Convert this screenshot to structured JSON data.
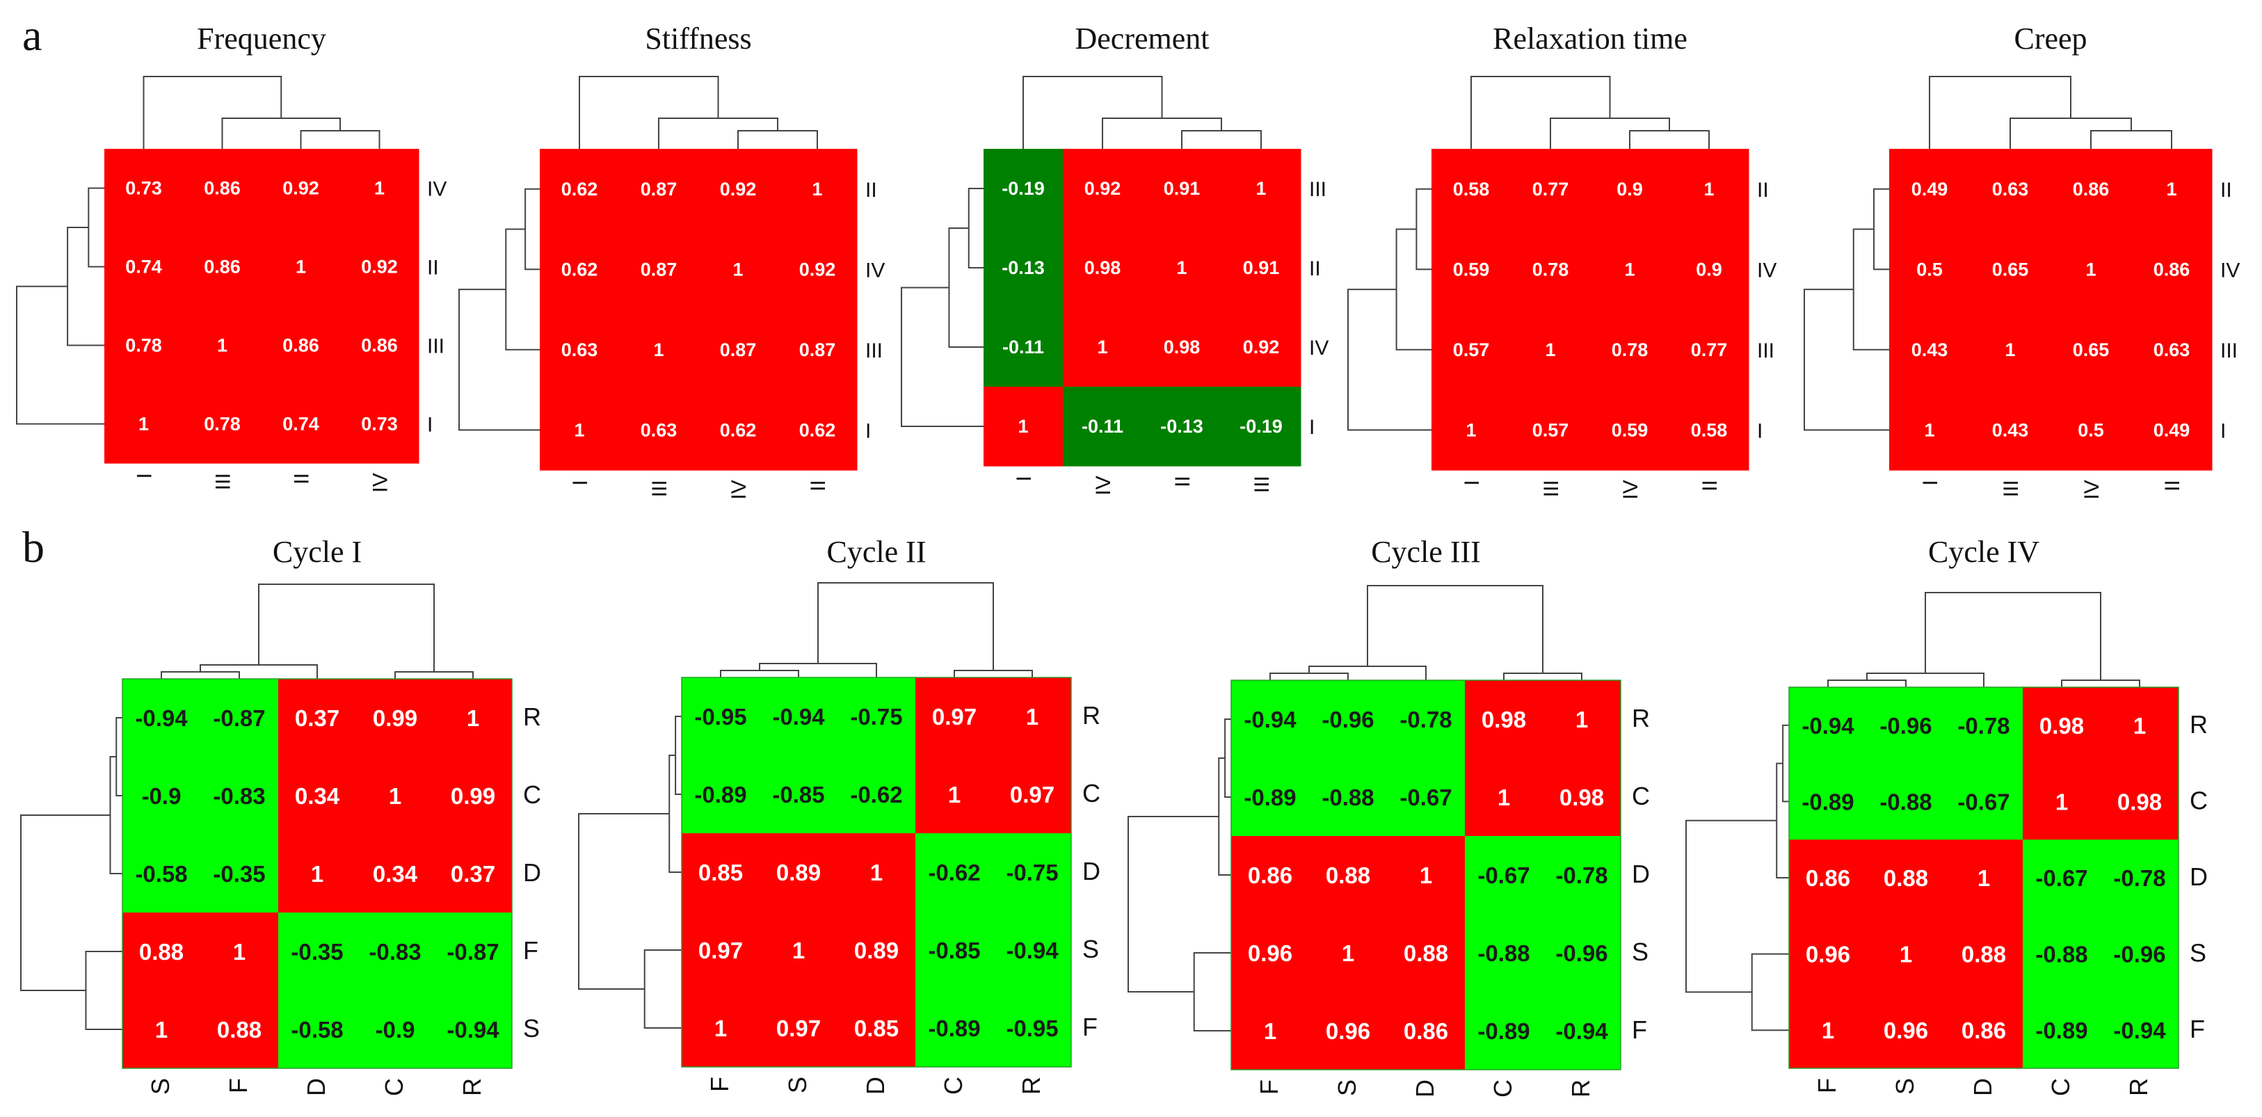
{
  "panel_labels": [
    "a",
    "b"
  ],
  "colors": {
    "high": "#ff0000",
    "low_dark": "#008000",
    "low_bright": "#00ff00",
    "text_positive": "#ffffff",
    "text_negative_dark": "#ffffff",
    "text_negative_bright": "#1a1a1a"
  },
  "chart_data": [
    {
      "type": "heatmap",
      "panel": "a",
      "title": "Frequency",
      "row_labels": [
        "IV",
        "II",
        "III",
        "I"
      ],
      "col_labels": [
        "I",
        "III",
        "II",
        "IV"
      ],
      "values": [
        [
          0.73,
          0.86,
          0.92,
          1
        ],
        [
          0.74,
          0.86,
          1,
          0.92
        ],
        [
          0.78,
          1,
          0.86,
          0.86
        ],
        [
          1,
          0.78,
          0.74,
          0.73
        ]
      ],
      "value_labels": [
        [
          "0.73",
          "0.86",
          "0.92",
          "1"
        ],
        [
          "0.74",
          "0.86",
          "1",
          "0.92"
        ],
        [
          "0.78",
          "1",
          "0.86",
          "0.86"
        ],
        [
          "1",
          "0.78",
          "0.74",
          "0.73"
        ]
      ],
      "row_dendrogram": true,
      "col_dendrogram": true
    },
    {
      "type": "heatmap",
      "panel": "a",
      "title": "Stiffness",
      "row_labels": [
        "II",
        "IV",
        "III",
        "I"
      ],
      "col_labels": [
        "I",
        "III",
        "IV",
        "II"
      ],
      "values": [
        [
          0.62,
          0.87,
          0.92,
          1
        ],
        [
          0.62,
          0.87,
          1,
          0.92
        ],
        [
          0.63,
          1,
          0.87,
          0.87
        ],
        [
          1,
          0.63,
          0.62,
          0.62
        ]
      ],
      "value_labels": [
        [
          "0.62",
          "0.87",
          "0.92",
          "1"
        ],
        [
          "0.62",
          "0.87",
          "1",
          "0.92"
        ],
        [
          "0.63",
          "1",
          "0.87",
          "0.87"
        ],
        [
          "1",
          "0.63",
          "0.62",
          "0.62"
        ]
      ],
      "row_dendrogram": true,
      "col_dendrogram": true
    },
    {
      "type": "heatmap",
      "panel": "a",
      "title": "Decrement",
      "row_labels": [
        "III",
        "II",
        "IV",
        "I"
      ],
      "col_labels": [
        "I",
        "IV",
        "II",
        "III"
      ],
      "values": [
        [
          -0.19,
          0.92,
          0.91,
          1
        ],
        [
          -0.13,
          0.98,
          1,
          0.91
        ],
        [
          -0.11,
          1,
          0.98,
          0.92
        ],
        [
          1,
          -0.11,
          -0.13,
          -0.19
        ]
      ],
      "value_labels": [
        [
          "-0.19",
          "0.92",
          "0.91",
          "1"
        ],
        [
          "-0.13",
          "0.98",
          "1",
          "0.91"
        ],
        [
          "-0.11",
          "1",
          "0.98",
          "0.92"
        ],
        [
          "1",
          "-0.11",
          "-0.13",
          "-0.19"
        ]
      ],
      "row_dendrogram": true,
      "col_dendrogram": true
    },
    {
      "type": "heatmap",
      "panel": "a",
      "title": "Relaxation time",
      "row_labels": [
        "II",
        "IV",
        "III",
        "I"
      ],
      "col_labels": [
        "I",
        "III",
        "IV",
        "II"
      ],
      "values": [
        [
          0.58,
          0.77,
          0.9,
          1
        ],
        [
          0.59,
          0.78,
          1,
          0.9
        ],
        [
          0.57,
          1,
          0.78,
          0.77
        ],
        [
          1,
          0.57,
          0.59,
          0.58
        ]
      ],
      "value_labels": [
        [
          "0.58",
          "0.77",
          "0.9",
          "1"
        ],
        [
          "0.59",
          "0.78",
          "1",
          "0.9"
        ],
        [
          "0.57",
          "1",
          "0.78",
          "0.77"
        ],
        [
          "1",
          "0.57",
          "0.59",
          "0.58"
        ]
      ],
      "row_dendrogram": true,
      "col_dendrogram": true
    },
    {
      "type": "heatmap",
      "panel": "a",
      "title": "Creep",
      "row_labels": [
        "II",
        "IV",
        "III",
        "I"
      ],
      "col_labels": [
        "I",
        "III",
        "IV",
        "II"
      ],
      "values": [
        [
          0.49,
          0.63,
          0.86,
          1
        ],
        [
          0.5,
          0.65,
          1,
          0.86
        ],
        [
          0.43,
          1,
          0.65,
          0.63
        ],
        [
          1,
          0.43,
          0.5,
          0.49
        ]
      ],
      "value_labels": [
        [
          "0.49",
          "0.63",
          "0.86",
          "1"
        ],
        [
          "0.5",
          "0.65",
          "1",
          "0.86"
        ],
        [
          "0.43",
          "1",
          "0.65",
          "0.63"
        ],
        [
          "1",
          "0.43",
          "0.5",
          "0.49"
        ]
      ],
      "row_dendrogram": true,
      "col_dendrogram": true
    },
    {
      "type": "heatmap",
      "panel": "b",
      "title": "Cycle I",
      "row_labels": [
        "R",
        "C",
        "D",
        "F",
        "S"
      ],
      "col_labels": [
        "S",
        "F",
        "D",
        "C",
        "R"
      ],
      "values": [
        [
          -0.94,
          -0.87,
          0.37,
          0.99,
          1
        ],
        [
          -0.9,
          -0.83,
          0.34,
          1,
          0.99
        ],
        [
          -0.58,
          -0.35,
          1,
          0.34,
          0.37
        ],
        [
          0.88,
          1,
          -0.35,
          -0.83,
          -0.87
        ],
        [
          1,
          0.88,
          -0.58,
          -0.9,
          -0.94
        ]
      ],
      "value_labels": [
        [
          "-0.94",
          "-0.87",
          "0.37",
          "0.99",
          "1"
        ],
        [
          "-0.9",
          "-0.83",
          "0.34",
          "1",
          "0.99"
        ],
        [
          "-0.58",
          "-0.35",
          "1",
          "0.34",
          "0.37"
        ],
        [
          "0.88",
          "1",
          "-0.35",
          "-0.83",
          "-0.87"
        ],
        [
          "1",
          "0.88",
          "-0.58",
          "-0.9",
          "-0.94"
        ]
      ],
      "row_dendrogram": true,
      "col_dendrogram": true
    },
    {
      "type": "heatmap",
      "panel": "b",
      "title": "Cycle II",
      "row_labels": [
        "R",
        "C",
        "D",
        "S",
        "F"
      ],
      "col_labels": [
        "F",
        "S",
        "D",
        "C",
        "R"
      ],
      "values": [
        [
          -0.95,
          -0.94,
          -0.75,
          0.97,
          1
        ],
        [
          -0.89,
          -0.85,
          -0.62,
          1,
          0.97
        ],
        [
          0.85,
          0.89,
          1,
          -0.62,
          -0.75
        ],
        [
          0.97,
          1,
          0.89,
          -0.85,
          -0.94
        ],
        [
          1,
          0.97,
          0.85,
          -0.89,
          -0.95
        ]
      ],
      "value_labels": [
        [
          "-0.95",
          "-0.94",
          "-0.75",
          "0.97",
          "1"
        ],
        [
          "-0.89",
          "-0.85",
          "-0.62",
          "1",
          "0.97"
        ],
        [
          "0.85",
          "0.89",
          "1",
          "-0.62",
          "-0.75"
        ],
        [
          "0.97",
          "1",
          "0.89",
          "-0.85",
          "-0.94"
        ],
        [
          "1",
          "0.97",
          "0.85",
          "-0.89",
          "-0.95"
        ]
      ],
      "row_dendrogram": true,
      "col_dendrogram": true
    },
    {
      "type": "heatmap",
      "panel": "b",
      "title": "Cycle III",
      "row_labels": [
        "R",
        "C",
        "D",
        "S",
        "F"
      ],
      "col_labels": [
        "F",
        "S",
        "D",
        "C",
        "R"
      ],
      "values": [
        [
          -0.94,
          -0.96,
          -0.78,
          0.98,
          1
        ],
        [
          -0.89,
          -0.88,
          -0.67,
          1,
          0.98
        ],
        [
          0.86,
          0.88,
          1,
          -0.67,
          -0.78
        ],
        [
          0.96,
          1,
          0.88,
          -0.88,
          -0.96
        ],
        [
          1,
          0.96,
          0.86,
          -0.89,
          -0.94
        ]
      ],
      "value_labels": [
        [
          "-0.94",
          "-0.96",
          "-0.78",
          "0.98",
          "1"
        ],
        [
          "-0.89",
          "-0.88",
          "-0.67",
          "1",
          "0.98"
        ],
        [
          "0.86",
          "0.88",
          "1",
          "-0.67",
          "-0.78"
        ],
        [
          "0.96",
          "1",
          "0.88",
          "-0.88",
          "-0.96"
        ],
        [
          "1",
          "0.96",
          "0.86",
          "-0.89",
          "-0.94"
        ]
      ],
      "row_dendrogram": true,
      "col_dendrogram": true
    },
    {
      "type": "heatmap",
      "panel": "b",
      "title": "Cycle IV",
      "row_labels": [
        "R",
        "C",
        "D",
        "S",
        "F"
      ],
      "col_labels": [
        "F",
        "S",
        "D",
        "C",
        "R"
      ],
      "values": [
        [
          -0.94,
          -0.96,
          -0.78,
          0.98,
          1
        ],
        [
          -0.89,
          -0.88,
          -0.67,
          1,
          0.98
        ],
        [
          0.86,
          0.88,
          1,
          -0.67,
          -0.78
        ],
        [
          0.96,
          1,
          0.88,
          -0.88,
          -0.96
        ],
        [
          1,
          0.96,
          0.86,
          -0.89,
          -0.94
        ]
      ],
      "value_labels": [
        [
          "-0.94",
          "-0.96",
          "-0.78",
          "0.98",
          "1"
        ],
        [
          "-0.89",
          "-0.88",
          "-0.67",
          "1",
          "0.98"
        ],
        [
          "0.86",
          "0.88",
          "1",
          "-0.67",
          "-0.78"
        ],
        [
          "0.96",
          "1",
          "0.88",
          "-0.88",
          "-0.96"
        ],
        [
          "1",
          "0.96",
          "0.86",
          "-0.89",
          "-0.94"
        ]
      ],
      "row_dendrogram": true,
      "col_dendrogram": true
    }
  ]
}
